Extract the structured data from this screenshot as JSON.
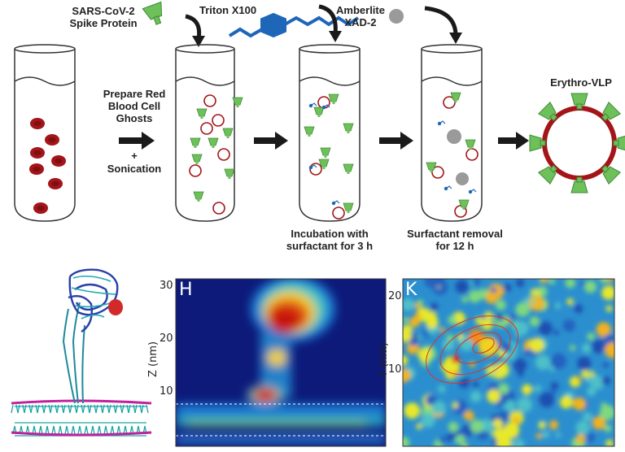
{
  "top": {
    "reagents": {
      "spike": "SARS-CoV-2\nSpike Protein",
      "triton": "Triton X100",
      "amberlite": "Amberlite\nXAD-2"
    },
    "step1": {
      "line1": "Prepare Red\nBlood Cell\nGhosts",
      "plus": "+",
      "line2": "Sonication"
    },
    "step2": "Incubation with\nsurfactant for 3 h",
    "step3": "Surfactant removal\nfor 12 h",
    "product": "Erythro-VLP"
  },
  "panelH": {
    "letter": "H",
    "ylabel": "Z (nm)",
    "yticks": [
      "30",
      "20",
      "10"
    ]
  },
  "panelK": {
    "letter": "K",
    "ylabel": "Y (nm)",
    "yticks": [
      "20",
      "10"
    ]
  },
  "colors": {
    "rbc": "#a01518",
    "spike": "#6ec05a",
    "triton": "#1e66b8",
    "bead": "#9a9a9a",
    "arrow": "#1a1a1a"
  }
}
